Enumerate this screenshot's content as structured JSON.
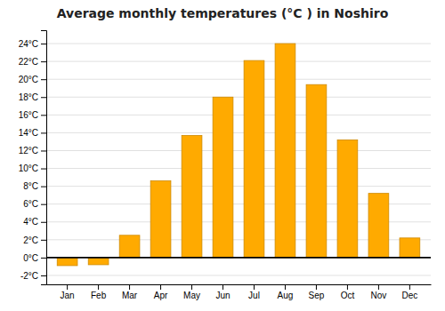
{
  "chart_data": {
    "type": "bar",
    "title": "Average monthly temperatures (°C ) in Noshiro",
    "categories": [
      "Jan",
      "Feb",
      "Mar",
      "Apr",
      "May",
      "Jun",
      "Jul",
      "Aug",
      "Sep",
      "Oct",
      "Nov",
      "Dec"
    ],
    "values": [
      -0.9,
      -0.8,
      2.5,
      8.6,
      13.7,
      18.0,
      22.1,
      24.0,
      19.4,
      13.2,
      7.2,
      2.2
    ],
    "color": "#FFAA00",
    "ylim": [
      -3,
      25.5
    ],
    "yticks": [
      {
        "value": -2,
        "label": "-2°C"
      },
      {
        "value": 0,
        "label": "0°C"
      },
      {
        "value": 2,
        "label": "2°C"
      },
      {
        "value": 4,
        "label": "4°C"
      },
      {
        "value": 6,
        "label": "6°C"
      },
      {
        "value": 8,
        "label": "8°C"
      },
      {
        "value": 10,
        "label": "10°C"
      },
      {
        "value": 12,
        "label": "12°C"
      },
      {
        "value": 14,
        "label": "14°C"
      },
      {
        "value": 16,
        "label": "16°C"
      },
      {
        "value": 18,
        "label": "18°C"
      },
      {
        "value": 20,
        "label": "20°C"
      },
      {
        "value": 22,
        "label": "22°C"
      },
      {
        "value": 24,
        "label": "24°C"
      }
    ],
    "grid": true
  }
}
